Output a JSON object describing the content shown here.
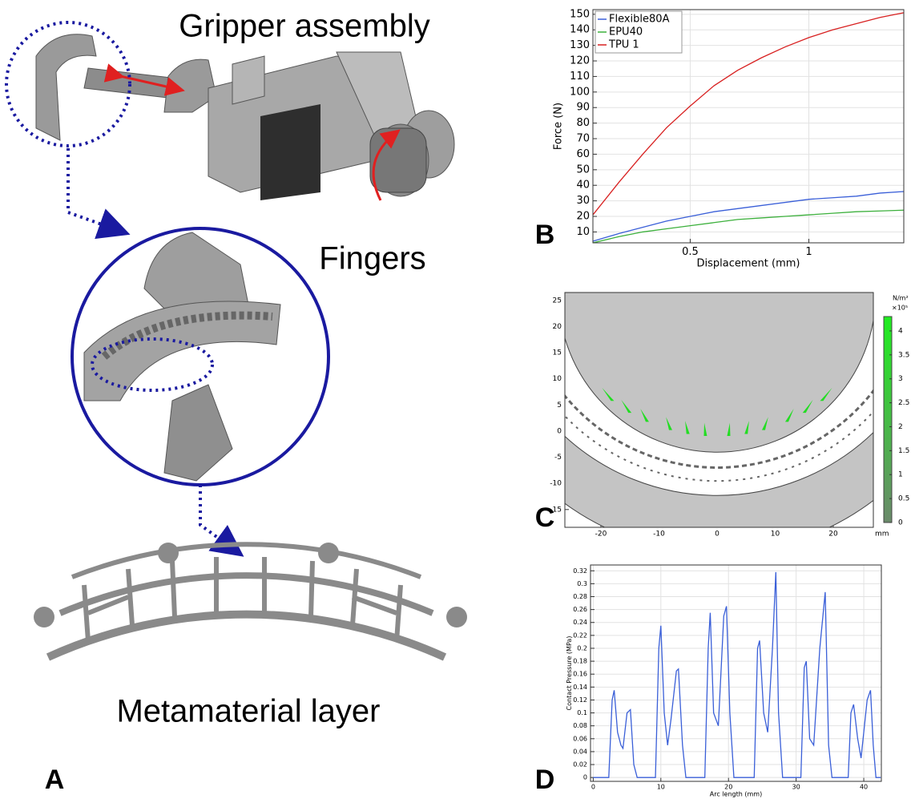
{
  "figure": {
    "caption_gripper": "Gripper assembly",
    "caption_fingers": "Fingers",
    "caption_layer": "Metamaterial layer",
    "panel_a": "A",
    "panel_b": "B",
    "panel_c": "C",
    "panel_d": "D"
  },
  "chart_data": [
    {
      "type": "line",
      "x_label": "Displacement (mm)",
      "y_label": "Force (N)",
      "grid": true,
      "legend": "upper left",
      "x": [
        0.09,
        0.2,
        0.3,
        0.4,
        0.5,
        0.6,
        0.7,
        0.8,
        0.9,
        1.0,
        1.1,
        1.2,
        1.3,
        1.4
      ],
      "series": [
        {
          "name": "Flexible80A",
          "color": "#3a5fd8",
          "values": [
            4,
            9,
            13,
            17,
            20,
            23,
            25,
            27,
            29,
            31,
            32,
            33,
            35,
            36
          ]
        },
        {
          "name": "EPU40",
          "color": "#3cb03c",
          "values": [
            3,
            7,
            10,
            12,
            14,
            16,
            18,
            19,
            20,
            21,
            22,
            23,
            23.5,
            24
          ]
        },
        {
          "name": "TPU 1",
          "color": "#d82020",
          "values": [
            21,
            42,
            60,
            77,
            91,
            104,
            114,
            122,
            129,
            135,
            140,
            144,
            148,
            151
          ]
        }
      ],
      "xlim": [
        0.09,
        1.4
      ],
      "xticks": [
        0.5,
        1
      ],
      "ylim": [
        3,
        153
      ],
      "yticks": [
        10,
        20,
        30,
        40,
        50,
        60,
        70,
        80,
        90,
        100,
        110,
        120,
        130,
        140,
        150
      ]
    },
    {
      "type": "field",
      "x_unit": "mm",
      "colorbar_unit": "N/m²",
      "colorbar_scale": "×10⁵",
      "xlim": [
        -26.2,
        26.9
      ],
      "xticks": [
        -20,
        -10,
        0,
        10,
        20
      ],
      "ylim": [
        -18.4,
        26.5
      ],
      "yticks": [
        -15,
        -10,
        -5,
        0,
        5,
        10,
        15,
        20,
        25
      ],
      "clim": [
        0,
        4.3
      ],
      "cticks": [
        0,
        0.5,
        1,
        1.5,
        2,
        2.5,
        3,
        3.5,
        4
      ]
    },
    {
      "type": "line",
      "x_label": "Arc length (mm)",
      "y_label": "Contact Pressure (MPa)",
      "grid": true,
      "color": "#3a5fd8",
      "x": [
        0,
        2.3,
        2.8,
        3.1,
        3.6,
        4.1,
        4.4,
        5,
        5.5,
        6,
        6.5,
        9.2,
        9.7,
        10,
        10.5,
        11,
        11.5,
        12.3,
        12.6,
        13.2,
        13.7,
        16.5,
        17,
        17.3,
        17.8,
        18.5,
        19.3,
        19.7,
        20.2,
        20.8,
        23.8,
        24.3,
        24.6,
        25.2,
        25.8,
        26.5,
        27,
        27.4,
        28,
        30.7,
        31.2,
        31.5,
        32,
        32.6,
        33.5,
        34.3,
        34.8,
        35.3,
        37.7,
        38.1,
        38.5,
        39.1,
        39.6,
        40.5,
        41,
        41.4,
        41.8,
        42.5
      ],
      "values": [
        0,
        0,
        0.12,
        0.135,
        0.07,
        0.05,
        0.045,
        0.1,
        0.105,
        0.02,
        0,
        0,
        0.2,
        0.235,
        0.1,
        0.05,
        0.09,
        0.165,
        0.168,
        0.05,
        0,
        0,
        0.2,
        0.255,
        0.1,
        0.08,
        0.25,
        0.265,
        0.1,
        0,
        0,
        0.2,
        0.212,
        0.1,
        0.07,
        0.2,
        0.318,
        0.1,
        0,
        0,
        0.17,
        0.18,
        0.06,
        0.05,
        0.2,
        0.287,
        0.05,
        0,
        0,
        0.1,
        0.113,
        0.06,
        0.03,
        0.12,
        0.135,
        0.05,
        0,
        0
      ],
      "xlim": [
        -0.4,
        42.6
      ],
      "xticks": [
        0,
        10,
        20,
        30,
        40
      ],
      "ylim": [
        -0.006,
        0.329
      ],
      "yticks": [
        0,
        0.02,
        0.04,
        0.06,
        0.08,
        0.1,
        0.12,
        0.14,
        0.16,
        0.18,
        0.2,
        0.22,
        0.24,
        0.26,
        0.28,
        0.3,
        0.32
      ]
    }
  ]
}
